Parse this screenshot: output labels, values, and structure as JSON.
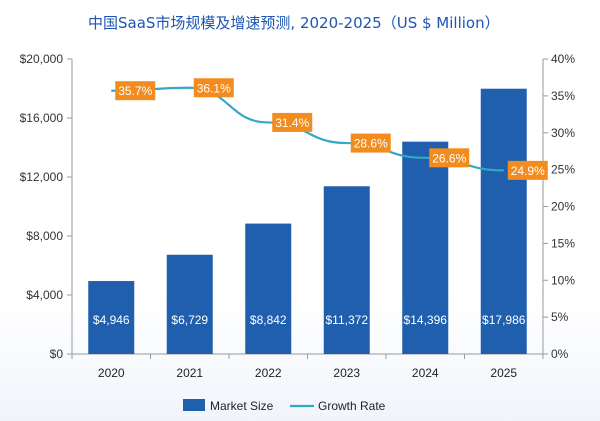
{
  "chart_data": {
    "type": "bar",
    "title": "中国SaaS市场规模及增速预测, 2020-2025（US $ Million）",
    "categories": [
      "2020",
      "2021",
      "2022",
      "2023",
      "2024",
      "2025"
    ],
    "series": [
      {
        "name": "Market Size",
        "type": "bar",
        "axis": "left",
        "values": [
          4946,
          6729,
          8842,
          11372,
          14396,
          17986
        ],
        "labels": [
          "$4,946",
          "$6,729",
          "$8,842",
          "$11,372",
          "$14,396",
          "$17,986"
        ],
        "color": "#1f5fae"
      },
      {
        "name": "Growth Rate",
        "type": "line",
        "axis": "right",
        "values": [
          35.7,
          36.1,
          31.4,
          28.6,
          26.6,
          24.9
        ],
        "labels": [
          "35.7%",
          "36.1%",
          "31.4%",
          "28.6%",
          "26.6%",
          "24.9%"
        ],
        "color": "#33a9c6",
        "label_color": "#f28c1e"
      }
    ],
    "ylim_left": [
      0,
      20000
    ],
    "yticks_left": [
      "$0",
      "$4,000",
      "$8,000",
      "$12,000",
      "$16,000",
      "$20,000"
    ],
    "ylim_right": [
      0,
      40
    ],
    "yticks_right": [
      "0%",
      "5%",
      "10%",
      "15%",
      "20%",
      "25%",
      "30%",
      "35%",
      "40%"
    ],
    "grid": false,
    "legend": "bottom-center"
  }
}
